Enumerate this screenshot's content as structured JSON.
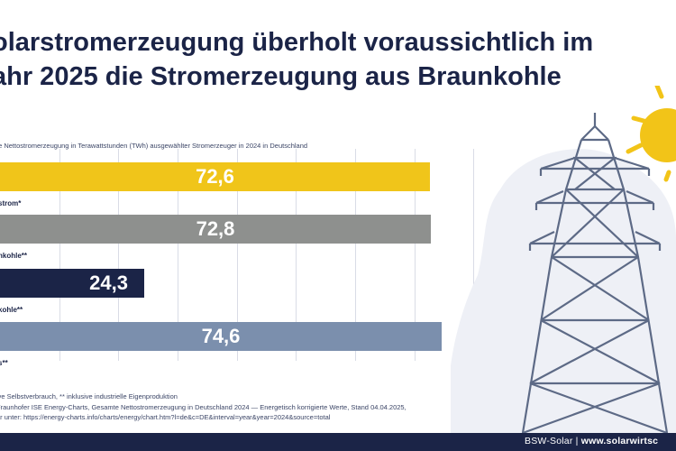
{
  "title_line1": "olarstromerzeugung überholt voraussichtlich im",
  "title_line2": "ahr 2025 die Stromerzeugung aus Braunkohle",
  "footnote_1": "ive Selbstverbrauch, ** inklusive industrielle Eigenproduktion",
  "footnote_2": "Fraunhofer ISE Energy-Charts, Gesamte Nettostromerzeugung in Deutschland 2024 — Energetisch korrigierte Werte, Stand 04.04.2025,",
  "footnote_3": "ar unter: https://energy-charts.info/charts/energy/chart.htm?l=de&c=DE&interval=year&year=2024&source=total",
  "footer": {
    "brand": "BSW-Solar",
    "separator": " | ",
    "url": "www.solarwirtsc"
  },
  "colors": {
    "navy": "#1b2447",
    "yellow": "#f0c51a",
    "gray": "#8e908e",
    "blue": "#7b8fad",
    "sun": "#f2c418"
  },
  "icons": [
    "sun-icon",
    "power-pylon-icon"
  ],
  "chart_data": {
    "type": "bar",
    "orientation": "horizontal",
    "subtitle": "te Nettostromerzeugung in Terawattstunden (TWh) ausgewählter Stromerzeuger in 2024 in Deutschland",
    "unit": "TWh",
    "xlim": [
      0,
      80
    ],
    "grid": true,
    "categories": [
      "strom*",
      "nkohle**",
      "kohle**",
      "s**"
    ],
    "values": [
      72.6,
      72.8,
      24.3,
      74.6
    ],
    "value_labels": [
      "72,6",
      "72,8",
      "24,3",
      "74,6"
    ],
    "bar_colors": [
      "#f0c51a",
      "#8e908e",
      "#1b2447",
      "#7b8fad"
    ]
  }
}
